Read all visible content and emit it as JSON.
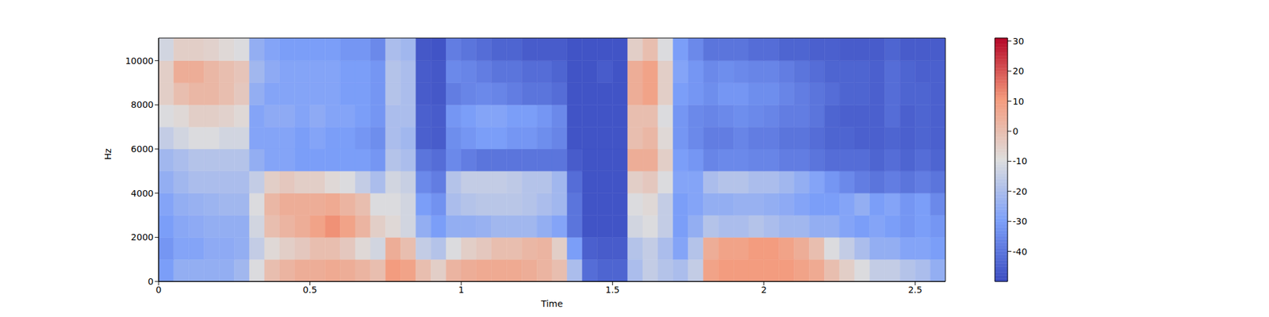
{
  "chart_data": {
    "type": "heatmap",
    "x_label": "Time",
    "y_label": "Hz",
    "x_edges": [
      0,
      0.05,
      0.1,
      0.15,
      0.2,
      0.25,
      0.3,
      0.35,
      0.4,
      0.45,
      0.5,
      0.55,
      0.6,
      0.65,
      0.7,
      0.75,
      0.8,
      0.85,
      0.9,
      0.95,
      1,
      1.05,
      1.1,
      1.15,
      1.2,
      1.25,
      1.3,
      1.35,
      1.4,
      1.45,
      1.5,
      1.55,
      1.6,
      1.65,
      1.7,
      1.75,
      1.8,
      1.85,
      1.9,
      1.95,
      2,
      2.05,
      2.1,
      2.15,
      2.2,
      2.25,
      2.3,
      2.35,
      2.4,
      2.45,
      2.5,
      2.55,
      2.6
    ],
    "y_edges": [
      0,
      1000,
      2000,
      3000,
      4000,
      5000,
      6000,
      7000,
      8000,
      9000,
      10000,
      11025
    ],
    "cells": [
      [
        -30,
        -25,
        -25,
        -25,
        -25,
        -22,
        -10,
        0,
        3,
        5,
        5,
        6,
        5,
        3,
        0,
        10,
        8,
        0,
        -5,
        3,
        5,
        6,
        6,
        6,
        5,
        3,
        0,
        -20,
        -42,
        -44,
        -44,
        -20,
        -15,
        -18,
        -20,
        -15,
        8,
        10,
        10,
        10,
        10,
        10,
        8,
        6,
        0,
        -5,
        -10,
        -15,
        -15,
        -18,
        -20,
        -25
      ],
      [
        -32,
        -28,
        -28,
        -26,
        -26,
        -25,
        -15,
        -8,
        -5,
        -3,
        0,
        0,
        -3,
        -8,
        -12,
        5,
        0,
        -15,
        -18,
        -10,
        -5,
        -3,
        0,
        0,
        2,
        3,
        -5,
        -30,
        -45,
        -46,
        -46,
        -18,
        -15,
        -20,
        -28,
        -18,
        5,
        8,
        8,
        10,
        10,
        8,
        5,
        0,
        -10,
        -15,
        -20,
        -25,
        -25,
        -28,
        -28,
        -30
      ],
      [
        -30,
        -27,
        -26,
        -25,
        -25,
        -25,
        -12,
        0,
        3,
        5,
        8,
        12,
        8,
        3,
        -5,
        -8,
        -12,
        -25,
        -30,
        -25,
        -25,
        -24,
        -22,
        -22,
        -22,
        -25,
        -28,
        -40,
        -48,
        -48,
        -48,
        -12,
        -10,
        -15,
        -30,
        -25,
        -18,
        -20,
        -20,
        -18,
        -20,
        -22,
        -22,
        -25,
        -25,
        -28,
        -30,
        -28,
        -30,
        -32,
        -30,
        -32
      ],
      [
        -28,
        -25,
        -24,
        -23,
        -22,
        -22,
        -10,
        2,
        5,
        5,
        5,
        6,
        3,
        0,
        -10,
        -10,
        -12,
        -30,
        -33,
        -20,
        -18,
        -17,
        -17,
        -17,
        -18,
        -20,
        -22,
        -40,
        -48,
        -48,
        -48,
        -10,
        -8,
        -15,
        -30,
        -28,
        -25,
        -25,
        -24,
        -24,
        -25,
        -26,
        -28,
        -30,
        -30,
        -28,
        -25,
        -30,
        -28,
        -32,
        -30,
        -35
      ],
      [
        -25,
        -22,
        -20,
        -20,
        -20,
        -20,
        -15,
        -5,
        -3,
        -5,
        -5,
        -8,
        -10,
        -15,
        -20,
        -12,
        -14,
        -35,
        -38,
        -18,
        -15,
        -15,
        -15,
        -16,
        -18,
        -18,
        -22,
        -42,
        -48,
        -48,
        -48,
        -5,
        -3,
        -10,
        -28,
        -28,
        -20,
        -18,
        -18,
        -20,
        -20,
        -22,
        -25,
        -28,
        -32,
        -35,
        -38,
        -40,
        -38,
        -40,
        -38,
        -40
      ],
      [
        -22,
        -20,
        -18,
        -18,
        -18,
        -18,
        -25,
        -28,
        -28,
        -30,
        -30,
        -30,
        -30,
        -30,
        -32,
        -18,
        -20,
        -40,
        -42,
        -35,
        -38,
        -40,
        -40,
        -40,
        -40,
        -40,
        -40,
        -46,
        -48,
        -48,
        -48,
        5,
        5,
        -5,
        -30,
        -32,
        -36,
        -35,
        -35,
        -36,
        -36,
        -38,
        -38,
        -40,
        -42,
        -42,
        -42,
        -44,
        -42,
        -44,
        -42,
        -44
      ],
      [
        -15,
        -12,
        -10,
        -10,
        -12,
        -12,
        -28,
        -28,
        -28,
        -30,
        -28,
        -30,
        -30,
        -32,
        -34,
        -20,
        -22,
        -45,
        -46,
        -34,
        -32,
        -30,
        -30,
        -32,
        -32,
        -34,
        -36,
        -48,
        -48,
        -48,
        -48,
        0,
        2,
        -8,
        -32,
        -35,
        -38,
        -38,
        -36,
        -38,
        -38,
        -40,
        -40,
        -42,
        -44,
        -44,
        -45,
        -45,
        -44,
        -45,
        -44,
        -45
      ],
      [
        -10,
        -8,
        -5,
        -5,
        -6,
        -8,
        -28,
        -26,
        -26,
        -28,
        -26,
        -28,
        -28,
        -30,
        -32,
        -20,
        -20,
        -45,
        -46,
        -32,
        -30,
        -28,
        -28,
        -30,
        -30,
        -32,
        -35,
        -48,
        -48,
        -48,
        -48,
        0,
        0,
        -10,
        -32,
        -35,
        -36,
        -35,
        -34,
        -35,
        -36,
        -38,
        -38,
        -40,
        -44,
        -45,
        -45,
        -45,
        -42,
        -45,
        -44,
        -45
      ],
      [
        -5,
        0,
        2,
        2,
        0,
        -3,
        -25,
        -28,
        -28,
        -28,
        -28,
        -28,
        -30,
        -30,
        -32,
        -18,
        -20,
        -46,
        -47,
        -38,
        -36,
        -35,
        -36,
        -38,
        -40,
        -40,
        -42,
        -48,
        -48,
        -48,
        -48,
        5,
        8,
        -5,
        -30,
        -32,
        -34,
        -32,
        -32,
        -34,
        -34,
        -36,
        -38,
        -40,
        -42,
        -44,
        -44,
        -45,
        -42,
        -44,
        -44,
        -45
      ],
      [
        -5,
        5,
        5,
        2,
        0,
        -2,
        -22,
        -26,
        -28,
        -28,
        -28,
        -28,
        -30,
        -30,
        -32,
        -18,
        -20,
        -46,
        -47,
        -35,
        -36,
        -38,
        -40,
        -40,
        -42,
        -42,
        -44,
        -48,
        -48,
        -46,
        -48,
        5,
        8,
        -5,
        -28,
        -32,
        -35,
        -34,
        -35,
        -36,
        -36,
        -38,
        -40,
        -42,
        -44,
        -44,
        -44,
        -45,
        -42,
        -44,
        -45,
        -45
      ],
      [
        -12,
        -5,
        -5,
        -6,
        -8,
        -10,
        -25,
        -28,
        -30,
        -30,
        -30,
        -30,
        -32,
        -32,
        -35,
        -20,
        -22,
        -47,
        -48,
        -38,
        -40,
        -42,
        -44,
        -44,
        -46,
        -46,
        -46,
        -48,
        -48,
        -48,
        -48,
        -5,
        0,
        -10,
        -30,
        -35,
        -40,
        -40,
        -40,
        -42,
        -42,
        -44,
        -44,
        -45,
        -45,
        -46,
        -46,
        -46,
        -44,
        -46,
        -46,
        -46
      ]
    ],
    "xlim": [
      0,
      2.6
    ],
    "xticks": [
      0,
      0.5,
      1,
      1.5,
      2,
      2.5
    ],
    "ylim": [
      0,
      11025
    ],
    "yticks": [
      0,
      2000,
      4000,
      6000,
      8000,
      10000
    ],
    "colorbar": {
      "range": [
        -50,
        31
      ],
      "ticks": [
        -40,
        -30,
        -20,
        -10,
        0,
        10,
        20,
        30
      ]
    },
    "grid": false
  }
}
